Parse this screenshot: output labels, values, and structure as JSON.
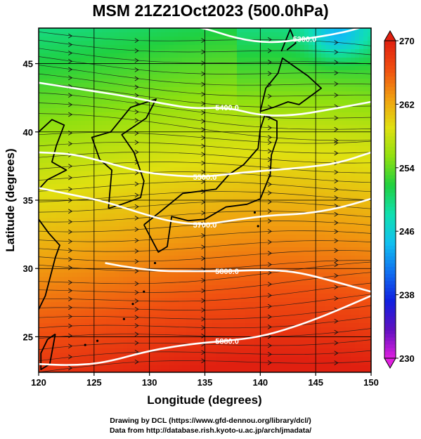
{
  "title": "MSM 21Z21Oct2023 (500.0hPa)",
  "chart_data": {
    "type": "heatmap",
    "variable": "temperature with geopotential height contours and wind streamlines",
    "xlabel": "Longitude (degrees)",
    "ylabel": "Latitude  (degrees)",
    "xlim": [
      120,
      150
    ],
    "ylim": [
      22.4,
      47.6
    ],
    "x_ticks": [
      {
        "value": 120,
        "label": "120"
      },
      {
        "value": 125,
        "label": "125"
      },
      {
        "value": 130,
        "label": "130"
      },
      {
        "value": 135,
        "label": "135"
      },
      {
        "value": 140,
        "label": "140"
      },
      {
        "value": 145,
        "label": "145"
      },
      {
        "value": 150,
        "label": "150"
      }
    ],
    "y_ticks": [
      {
        "value": 25,
        "label": "25"
      },
      {
        "value": 30,
        "label": "30"
      },
      {
        "value": 35,
        "label": "35"
      },
      {
        "value": 40,
        "label": "40"
      },
      {
        "value": 45,
        "label": "45"
      }
    ],
    "colorbar": {
      "min": 230,
      "max": 270,
      "ticks": [
        {
          "value": 270,
          "label": "270"
        },
        {
          "value": 262,
          "label": "262"
        },
        {
          "value": 254,
          "label": "254"
        },
        {
          "value": 246,
          "label": "246"
        },
        {
          "value": 238,
          "label": "238"
        },
        {
          "value": 230,
          "label": "230"
        }
      ],
      "colors": [
        "#e020e0",
        "#6010c0",
        "#1020e0",
        "#1070f0",
        "#10c0f0",
        "#10e0b0",
        "#20d040",
        "#90e010",
        "#e0e010",
        "#f0a010",
        "#f05010",
        "#e02010"
      ]
    },
    "contours": [
      {
        "label": "5400.0",
        "points": [
          [
            120,
            43.6
          ],
          [
            124,
            43.1
          ],
          [
            128,
            42.6
          ],
          [
            131,
            42.1
          ],
          [
            134,
            41.7
          ],
          [
            137,
            41.8
          ],
          [
            140,
            41.2
          ],
          [
            143,
            41.2
          ],
          [
            146,
            41.6
          ],
          [
            150,
            42.2
          ]
        ]
      },
      {
        "label": "5500.0",
        "points": [
          [
            120,
            38.5
          ],
          [
            123,
            38.4
          ],
          [
            126,
            37.8
          ],
          [
            129,
            37.1
          ],
          [
            132,
            36.8
          ],
          [
            135,
            36.7
          ],
          [
            138,
            37.0
          ],
          [
            141,
            37.2
          ],
          [
            144,
            37.4
          ],
          [
            147,
            37.7
          ],
          [
            150,
            38.5
          ]
        ]
      },
      {
        "label": "5700.0",
        "points": [
          [
            120,
            35.9
          ],
          [
            123,
            35.4
          ],
          [
            126,
            34.9
          ],
          [
            129,
            34.1
          ],
          [
            132,
            33.4
          ],
          [
            135,
            33.2
          ],
          [
            138,
            33.6
          ],
          [
            141,
            33.9
          ],
          [
            144,
            34.0
          ],
          [
            147,
            34.4
          ],
          [
            150,
            35.1
          ]
        ]
      },
      {
        "label": "5800.0",
        "points": [
          [
            126,
            30.4
          ],
          [
            128,
            30.1
          ],
          [
            131,
            29.8
          ],
          [
            134,
            29.8
          ],
          [
            137,
            29.8
          ],
          [
            140,
            29.9
          ],
          [
            143,
            29.8
          ],
          [
            146,
            29.2
          ],
          [
            150,
            28.3
          ]
        ]
      },
      {
        "label": "5880.0",
        "points": [
          [
            120,
            23.0
          ],
          [
            123,
            22.9
          ],
          [
            126,
            23.1
          ],
          [
            130,
            24.0
          ],
          [
            134,
            24.5
          ],
          [
            137,
            24.7
          ],
          [
            140,
            25.0
          ],
          [
            143,
            25.7
          ],
          [
            146,
            26.6
          ],
          [
            150,
            28.0
          ]
        ]
      },
      {
        "label": "5300.0",
        "points": [
          [
            132,
            48.0
          ],
          [
            135,
            47.6
          ],
          [
            138,
            46.8
          ],
          [
            141,
            46.5
          ],
          [
            144,
            46.8
          ],
          [
            147,
            47.2
          ],
          [
            149,
            47.6
          ],
          [
            150,
            48.0
          ]
        ]
      }
    ]
  }
}
